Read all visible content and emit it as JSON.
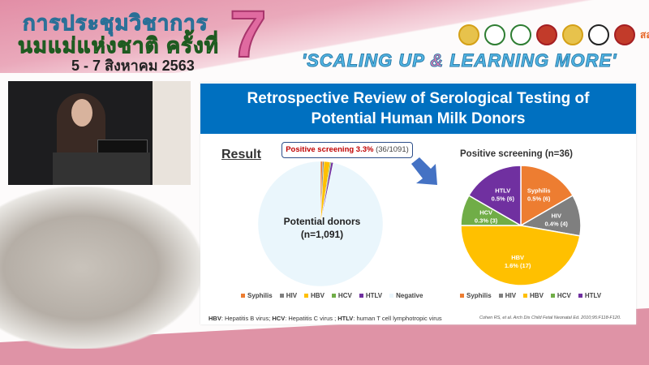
{
  "conference": {
    "title_line1": "การประชุมวิชาการ",
    "title_line2": "นมแม่แห่งชาติ ครั้งที่",
    "edition": "7",
    "date": "5 - 7 สิงหาคม 2563",
    "slogan_part1": "'SCALING UP ",
    "slogan_amp": "&",
    "slogan_part2": " LEARNING MORE'",
    "partner_logo_text": "สสส"
  },
  "slide": {
    "title_line1": "Retrospective Review of Serological Testing of",
    "title_line2": "Potential Human Milk Donors",
    "result_heading": "Result",
    "callout_bold": "Positive screening 3.3%",
    "callout_rest": " (36/1091)",
    "left_pie_label_line1": "Potential donors",
    "left_pie_label_line2": "(n=1,091)",
    "right_pie_title": "Positive screening (n=36)",
    "footnote": [
      {
        "abbr": "HBV",
        "text": ": Hepatitis B virus; "
      },
      {
        "abbr": "HCV",
        "text": ": Hepatitis C virus ; "
      },
      {
        "abbr": "HTLV",
        "text": ": human T cell lymphotropic virus"
      }
    ],
    "citation": "Cohen RS, et al. Arch Dis Child Fetal Neonatal Ed. 2010;95:F118-F120."
  },
  "chart_data": [
    {
      "type": "pie",
      "categories": [
        "Syphilis",
        "HIV",
        "HBV",
        "HCV",
        "HTLV",
        "Negative"
      ],
      "values": [
        6,
        4,
        17,
        3,
        6,
        1055
      ],
      "colors": [
        "#ed7d31",
        "#7f7f7f",
        "#ffc000",
        "#70ad47",
        "#7030a0",
        "#eaf6fc"
      ],
      "legend": "bottom"
    },
    {
      "type": "pie",
      "title": "Positive screening (n=36)",
      "categories": [
        "Syphilis",
        "HIV",
        "HBV",
        "HCV",
        "HTLV"
      ],
      "values": [
        6,
        4,
        17,
        3,
        6
      ],
      "data_labels": [
        "0.5% (6)",
        "0.4% (4)",
        "1.6% (17)",
        "0.3% (3)",
        "0.5% (6)"
      ],
      "colors": [
        "#ed7d31",
        "#7f7f7f",
        "#ffc000",
        "#70ad47",
        "#7030a0"
      ],
      "legend": "bottom"
    }
  ]
}
